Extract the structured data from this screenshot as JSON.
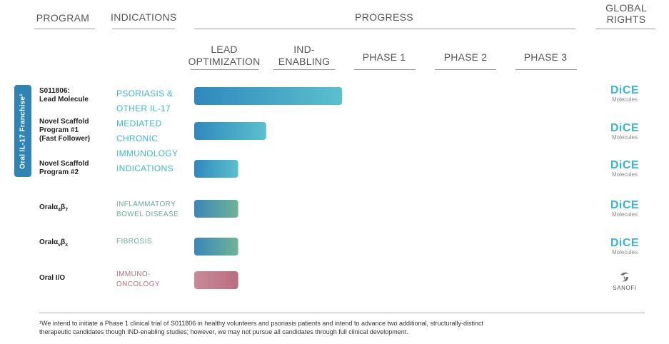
{
  "headers": {
    "program": "PROGRAM",
    "indications": "INDICATIONS",
    "progress": "PROGRESS",
    "global_rights": [
      "GLOBAL",
      "RIGHTS"
    ]
  },
  "phases": [
    [
      "LEAD",
      "OPTIMIZATION"
    ],
    [
      "IND-",
      "ENABLING"
    ],
    [
      "PHASE 1"
    ],
    [
      "PHASE 2"
    ],
    [
      "PHASE 3"
    ]
  ],
  "franchise_label": "Oral IL-17 Franchise¹",
  "programs": [
    {
      "lines": [
        "S011806:",
        "Lead Molecule"
      ]
    },
    {
      "lines": [
        "Novel Scaffold",
        "Program #1",
        "(Fast Follower)"
      ]
    },
    {
      "lines": [
        "Novel Scaffold",
        "Program #2"
      ]
    },
    {
      "lines": [
        "Oralα₄β₇"
      ]
    },
    {
      "lines": [
        "Oralα_vβ_x"
      ]
    },
    {
      "lines": [
        "Oral I/O"
      ]
    }
  ],
  "indications": {
    "il17": [
      "PSORIASIS &",
      "OTHER IL-17",
      "MEDIATED",
      "CHRONIC",
      "IMMUNOLOGY",
      "INDICATIONS"
    ],
    "ibd": [
      "INFLAMMATORY",
      "BOWEL DISEASE"
    ],
    "fibrosis": [
      "FIBROSIS"
    ],
    "io": [
      "IMMUNO-",
      "ONCOLOGY"
    ]
  },
  "rights": [
    {
      "type": "dice",
      "l1": "DiCE",
      "l2": "Molecules"
    },
    {
      "type": "dice",
      "l1": "DiCE",
      "l2": "Molecules"
    },
    {
      "type": "dice",
      "l1": "DiCE",
      "l2": "Molecules"
    },
    {
      "type": "dice",
      "l1": "DiCE",
      "l2": "Molecules"
    },
    {
      "type": "dice",
      "l1": "DiCE",
      "l2": "Molecules"
    },
    {
      "type": "sanofi",
      "l1": "SANOFI"
    }
  ],
  "colors": {
    "teal_start": "#2f88bd",
    "teal_end": "#5cc0cd",
    "green_start": "#3b86b8",
    "green_end": "#6fb495",
    "rose_start": "#c88b98",
    "rose_end": "#b86e80",
    "franchise": "#2f84b3"
  },
  "chart_data": {
    "type": "bar",
    "orientation": "horizontal",
    "categories": [
      "S011806: Lead Molecule",
      "Novel Scaffold Program #1 (Fast Follower)",
      "Novel Scaffold Program #2",
      "Oralα₄β₇",
      "Oralα_vβ_x",
      "Oral I/O"
    ],
    "stages": [
      "LEAD OPTIMIZATION",
      "IND-ENABLING",
      "PHASE 1",
      "PHASE 2",
      "PHASE 3"
    ],
    "values": [
      1.85,
      0.9,
      0.55,
      0.55,
      0.55,
      0.55
    ],
    "xlim": [
      0,
      5
    ]
  },
  "footnote": [
    "¹We intend to initiate a Phase 1 clinical trial of S011806 in healthy volunteers and psoriasis patients and intend to advance two additional, structurally-distinct",
    "therapeutic candidates though IND-enabling studies; however, we may not pursue all candidates through full clinical development."
  ]
}
